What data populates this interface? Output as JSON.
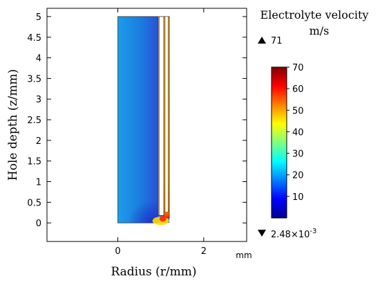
{
  "chart_data": {
    "type": "heatmap",
    "xlabel": "Radius (r/mm)",
    "ylabel": "Hole depth (z/mm)",
    "x_unit": "mm",
    "xlim": [
      -1.65,
      3.0
    ],
    "ylim": [
      -0.45,
      5.2
    ],
    "x_ticks": [
      0,
      2
    ],
    "y_ticks": [
      0,
      0.5,
      1,
      1.5,
      2,
      2.5,
      3,
      3.5,
      4,
      4.5,
      5
    ],
    "colorbar": {
      "title": "Electrolyte velocity",
      "unit": "m/s",
      "ticks": [
        10,
        20,
        30,
        40,
        50,
        60,
        70
      ],
      "range": [
        0,
        70
      ],
      "max_label": "71",
      "min_label": "2.48×10",
      "min_exponent": "-3",
      "colormap": "rainbow"
    }
  }
}
